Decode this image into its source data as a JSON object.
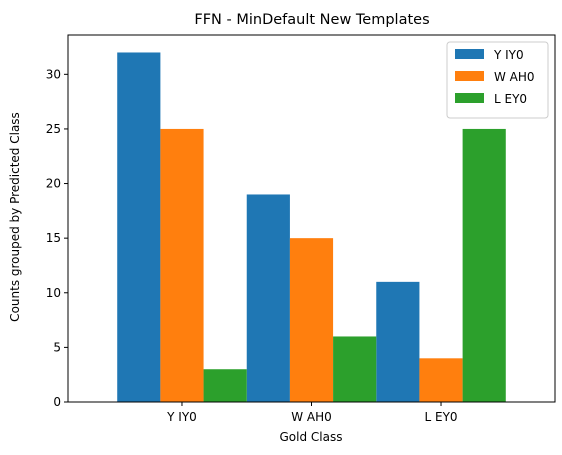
{
  "chart_data": {
    "type": "bar",
    "title": "FFN - MinDefault New Templates",
    "xlabel": "Gold Class",
    "ylabel": "Counts grouped by Predicted Class",
    "categories": [
      "Y IY0",
      "W AH0",
      "L EY0"
    ],
    "series": [
      {
        "name": "Y IY0",
        "values": [
          32,
          19,
          11
        ],
        "color": "#1f77b4"
      },
      {
        "name": "W AH0",
        "values": [
          25,
          15,
          4
        ],
        "color": "#ff7f0e"
      },
      {
        "name": "L EY0",
        "values": [
          3,
          6,
          25
        ],
        "color": "#2ca02c"
      }
    ],
    "ylim": [
      0,
      33.6
    ],
    "yticks": [
      0,
      5,
      10,
      15,
      20,
      25,
      30
    ],
    "grid": false,
    "legend_position": "top-right"
  }
}
